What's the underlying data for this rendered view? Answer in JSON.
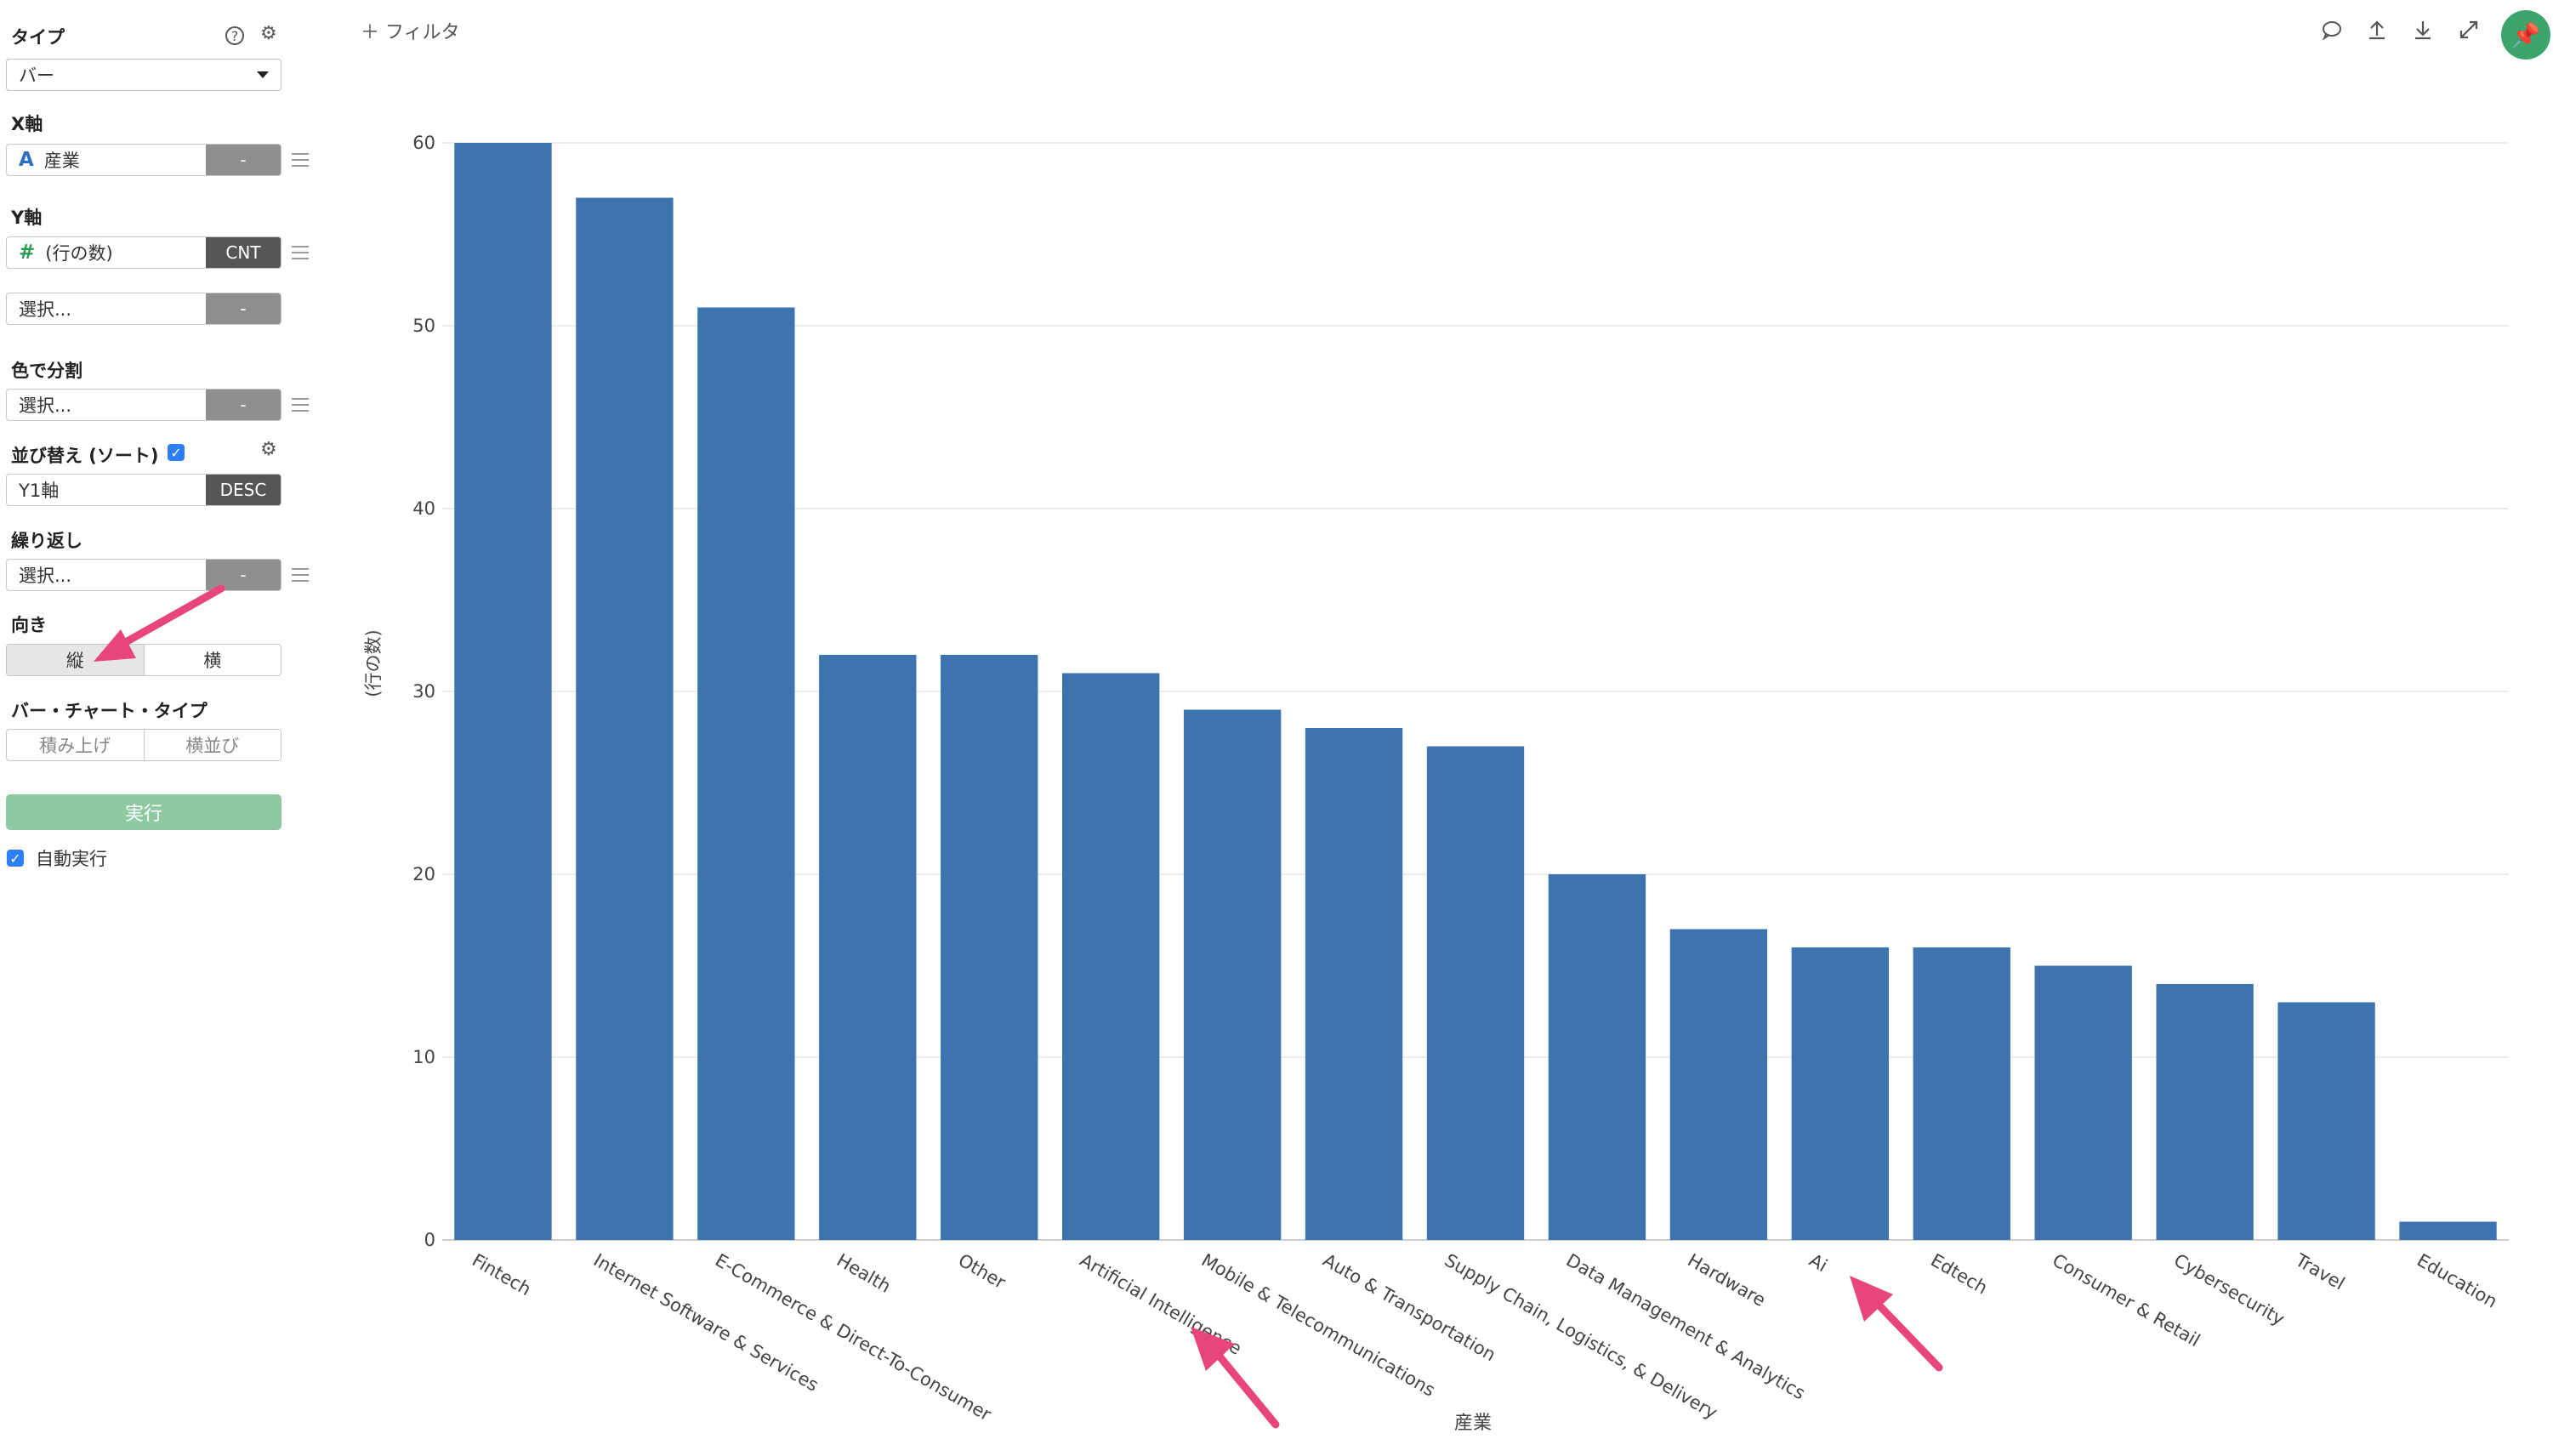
{
  "panel": {
    "type": {
      "label": "タイプ",
      "value": "バー"
    },
    "x_axis": {
      "label": "X軸",
      "field": "産業",
      "agg": "-"
    },
    "y_axis": {
      "label": "Y軸",
      "field": "(行の数)",
      "agg": "CNT",
      "second_placeholder": "選択...",
      "second_agg": "-"
    },
    "color_split": {
      "label": "色で分割",
      "placeholder": "選択...",
      "agg": "-"
    },
    "sort": {
      "label": "並び替え (ソート)",
      "checked": true,
      "field": "Y1軸",
      "order": "DESC"
    },
    "repeat": {
      "label": "繰り返し",
      "placeholder": "選択...",
      "agg": "-"
    },
    "orientation": {
      "label": "向き",
      "options": [
        "縦",
        "横"
      ],
      "selected": "縦"
    },
    "bar_type": {
      "label": "バー・チャート・タイプ",
      "options": [
        "積み上げ",
        "横並び"
      ]
    },
    "run_label": "実行",
    "auto_run": {
      "label": "自動実行",
      "checked": true
    }
  },
  "topbar": {
    "filter_label": "フィルタ",
    "icons": [
      "comment-icon",
      "upload-icon",
      "download-icon",
      "expand-icon",
      "pin-icon"
    ]
  },
  "colors": {
    "bar": "#3d74b0",
    "run": "#8fc9a2",
    "pin": "#3aa46a",
    "arrow": "#e8457a"
  },
  "chart_data": {
    "type": "bar",
    "categories": [
      "Fintech",
      "Internet Software & Services",
      "E-Commerce & Direct-To-Consumer",
      "Health",
      "Other",
      "Artificial Intelligence",
      "Mobile & Telecommunications",
      "Auto & Transportation",
      "Supply Chain, Logistics, & Delivery",
      "Data Management & Analytics",
      "Hardware",
      "Ai",
      "Edtech",
      "Consumer & Retail",
      "Cybersecurity",
      "Travel",
      "Education"
    ],
    "values": [
      60,
      57,
      51,
      32,
      32,
      31,
      29,
      28,
      27,
      20,
      17,
      16,
      16,
      15,
      14,
      13,
      1
    ],
    "xlabel": "産業",
    "ylabel": "(行の数)",
    "ylim": [
      0,
      60
    ],
    "yticks": [
      0,
      10,
      20,
      30,
      40,
      50,
      60
    ],
    "grid": true
  }
}
